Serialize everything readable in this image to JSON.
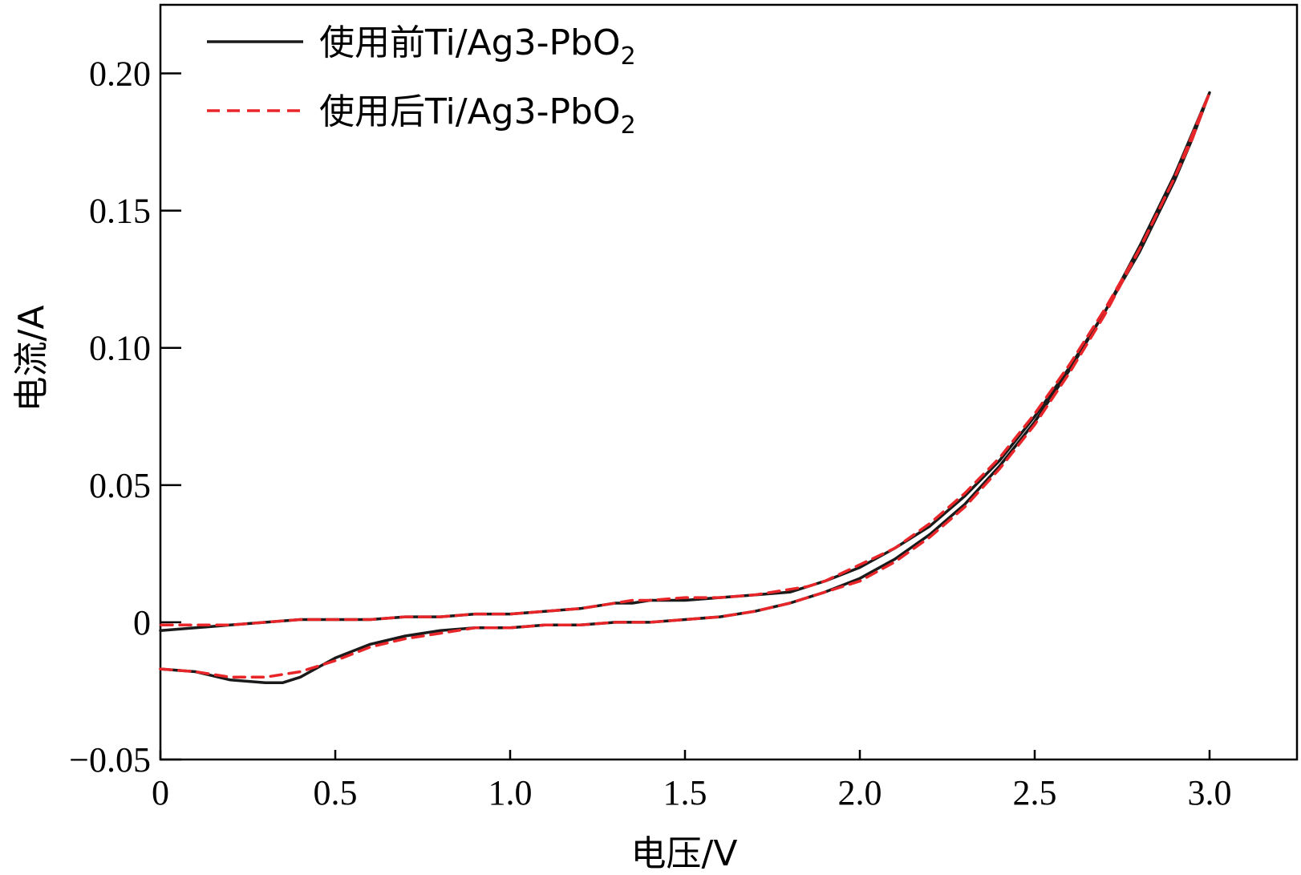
{
  "chart_data": {
    "type": "line",
    "title": "",
    "xlabel": "电压/V",
    "ylabel": "电流/A",
    "xlim": [
      0,
      3.25
    ],
    "ylim": [
      -0.05,
      0.225
    ],
    "xticks": [
      0,
      0.5,
      1.0,
      1.5,
      2.0,
      2.5,
      3.0
    ],
    "xtick_labels": [
      "0",
      "0.5",
      "1.0",
      "1.5",
      "2.0",
      "2.5",
      "3.0"
    ],
    "yticks": [
      -0.05,
      0,
      0.05,
      0.1,
      0.15,
      0.2
    ],
    "ytick_labels": [
      "−0.05",
      "0",
      "0.05",
      "0.10",
      "0.15",
      "0.20"
    ],
    "grid": false,
    "legend_position": "top-left",
    "series": [
      {
        "name": "使用前Ti/Ag3-PbO2",
        "legend_main": "使用前Ti/Ag3-PbO",
        "legend_sub": "2",
        "color": "#1a1a1a",
        "dash": "solid",
        "x": [
          0,
          0.1,
          0.2,
          0.3,
          0.35,
          0.4,
          0.5,
          0.6,
          0.7,
          0.8,
          0.9,
          1.0,
          1.1,
          1.2,
          1.3,
          1.4,
          1.5,
          1.6,
          1.7,
          1.8,
          1.9,
          2.0,
          2.1,
          2.2,
          2.3,
          2.4,
          2.5,
          2.6,
          2.7,
          2.8,
          2.9,
          3.0,
          2.95,
          2.9,
          2.8,
          2.7,
          2.6,
          2.5,
          2.4,
          2.3,
          2.2,
          2.1,
          2.0,
          1.9,
          1.85,
          1.8,
          1.7,
          1.6,
          1.5,
          1.4,
          1.35,
          1.3,
          1.2,
          1.1,
          1.0,
          0.9,
          0.8,
          0.7,
          0.6,
          0.5,
          0.4,
          0.3,
          0.2,
          0.1,
          0
        ],
        "y": [
          -0.017,
          -0.018,
          -0.021,
          -0.022,
          -0.022,
          -0.02,
          -0.013,
          -0.008,
          -0.005,
          -0.003,
          -0.002,
          -0.002,
          -0.001,
          -0.001,
          0.0,
          0.0,
          0.001,
          0.002,
          0.004,
          0.007,
          0.011,
          0.016,
          0.023,
          0.032,
          0.043,
          0.057,
          0.073,
          0.092,
          0.113,
          0.137,
          0.163,
          0.193,
          0.176,
          0.161,
          0.135,
          0.113,
          0.093,
          0.075,
          0.059,
          0.046,
          0.035,
          0.027,
          0.02,
          0.015,
          0.013,
          0.011,
          0.01,
          0.009,
          0.008,
          0.008,
          0.007,
          0.007,
          0.005,
          0.004,
          0.003,
          0.003,
          0.002,
          0.002,
          0.001,
          0.001,
          0.001,
          0.0,
          -0.001,
          -0.002,
          -0.003
        ]
      },
      {
        "name": "使用后Ti/Ag3-PbO2",
        "legend_main": "使用后Ti/Ag3-PbO",
        "legend_sub": "2",
        "color": "#e8262a",
        "dash": "dashed",
        "x": [
          0,
          0.1,
          0.2,
          0.3,
          0.35,
          0.4,
          0.5,
          0.6,
          0.7,
          0.8,
          0.9,
          1.0,
          1.1,
          1.2,
          1.3,
          1.4,
          1.5,
          1.6,
          1.7,
          1.8,
          1.9,
          2.0,
          2.1,
          2.2,
          2.3,
          2.4,
          2.5,
          2.6,
          2.7,
          2.8,
          2.9,
          3.0,
          2.95,
          2.9,
          2.8,
          2.7,
          2.6,
          2.5,
          2.4,
          2.3,
          2.2,
          2.1,
          2.0,
          1.9,
          1.85,
          1.8,
          1.7,
          1.6,
          1.5,
          1.4,
          1.35,
          1.3,
          1.2,
          1.1,
          1.0,
          0.9,
          0.8,
          0.7,
          0.6,
          0.5,
          0.4,
          0.3,
          0.2,
          0.1,
          0
        ],
        "y": [
          -0.017,
          -0.018,
          -0.02,
          -0.02,
          -0.019,
          -0.018,
          -0.014,
          -0.009,
          -0.006,
          -0.004,
          -0.002,
          -0.002,
          -0.001,
          -0.001,
          0.0,
          0.0,
          0.001,
          0.002,
          0.004,
          0.007,
          0.011,
          0.015,
          0.022,
          0.031,
          0.042,
          0.056,
          0.072,
          0.091,
          0.112,
          0.136,
          0.162,
          0.193,
          0.176,
          0.162,
          0.136,
          0.114,
          0.094,
          0.076,
          0.06,
          0.047,
          0.036,
          0.027,
          0.021,
          0.015,
          0.013,
          0.012,
          0.01,
          0.009,
          0.009,
          0.008,
          0.008,
          0.007,
          0.005,
          0.004,
          0.003,
          0.003,
          0.002,
          0.002,
          0.001,
          0.001,
          0.001,
          0.0,
          -0.001,
          -0.001,
          -0.001
        ]
      }
    ]
  }
}
